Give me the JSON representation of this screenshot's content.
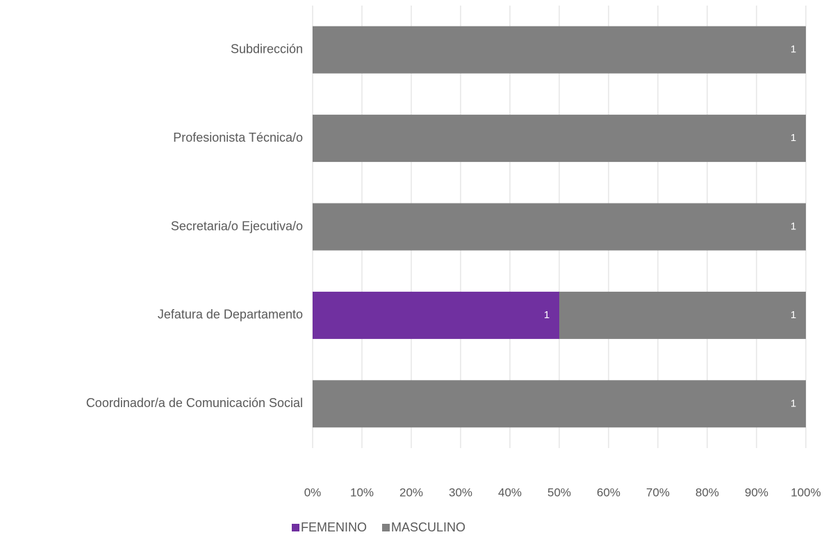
{
  "chart_data": {
    "type": "bar",
    "orientation": "horizontal",
    "stack": "percent",
    "categories": [
      "Subdirección",
      "Profesionista Técnica/o",
      "Secretaria/o Ejecutiva/o",
      "Jefatura de Departamento",
      "Coordinador/a de Comunicación Social"
    ],
    "series": [
      {
        "name": "FEMENINO",
        "color": "#7030a0",
        "values": [
          null,
          null,
          null,
          1,
          null
        ]
      },
      {
        "name": "MASCULINO",
        "color": "#808080",
        "values": [
          1,
          1,
          1,
          1,
          1
        ]
      }
    ],
    "xlim": [
      0,
      100
    ],
    "xticks": [
      {
        "value": 0,
        "label": "0%"
      },
      {
        "value": 10,
        "label": "10%"
      },
      {
        "value": 20,
        "label": "20%"
      },
      {
        "value": 30,
        "label": "30%"
      },
      {
        "value": 40,
        "label": "40%"
      },
      {
        "value": 50,
        "label": "50%"
      },
      {
        "value": 60,
        "label": "60%"
      },
      {
        "value": 70,
        "label": "70%"
      },
      {
        "value": 80,
        "label": "80%"
      },
      {
        "value": 90,
        "label": "90%"
      },
      {
        "value": 100,
        "label": "100%"
      }
    ],
    "grid": true,
    "legend": "bottom"
  }
}
